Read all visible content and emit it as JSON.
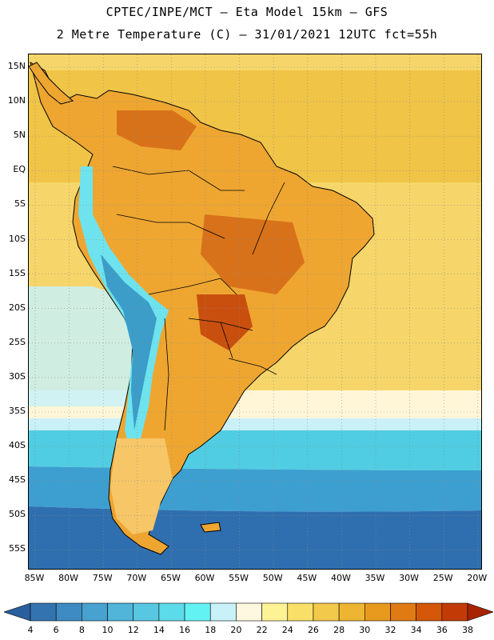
{
  "title": {
    "line1": "CPTEC/INPE/MCT –  Eta Model 15km – GFS",
    "line2": "2 Metre Temperature (C) – 31/01/2021 12UTC fct=55h"
  },
  "lat_labels": [
    "15N",
    "10N",
    "5N",
    "EQ",
    "5S",
    "10S",
    "15S",
    "20S",
    "25S",
    "30S",
    "35S",
    "40S",
    "45S",
    "50S",
    "55S"
  ],
  "lon_labels": [
    "85W",
    "80W",
    "75W",
    "70W",
    "65W",
    "60W",
    "55W",
    "50W",
    "45W",
    "40W",
    "35W",
    "30W",
    "25W",
    "20W"
  ],
  "colorbar": {
    "labels": [
      "4",
      "6",
      "8",
      "10",
      "12",
      "14",
      "16",
      "18",
      "20",
      "22",
      "24",
      "26",
      "28",
      "30",
      "32",
      "34",
      "36",
      "38"
    ],
    "colors": [
      "#2a5f9e",
      "#3374b0",
      "#3d8bc2",
      "#47a2cf",
      "#51b5da",
      "#58c8e2",
      "#5cdbe9",
      "#63f2f3",
      "#c8f2f7",
      "#fff8e1",
      "#fdf294",
      "#f8df68",
      "#f2c94a",
      "#edb532",
      "#e89a1e",
      "#e07a12",
      "#d4570a",
      "#c23a06",
      "#a82302"
    ]
  },
  "palette": {
    "ocean_warm": "#f6d66a",
    "ocean_hot": "#f0c447",
    "ocean_mild": "#fff6d8",
    "ocean_cool": "#c9f1f7",
    "ocean_cold": "#50cde2",
    "ocean_colder": "#3d9fd0",
    "ocean_coldest": "#2f6fb0",
    "land": "#eea631",
    "land_hot": "#d8721a",
    "land_hottest": "#c94f0f",
    "andes_cool": "#6ee3ee",
    "andes_cold": "#3c9dc9",
    "patagonia": "#f6c667",
    "grid": "#888888",
    "coast": "#000000"
  }
}
